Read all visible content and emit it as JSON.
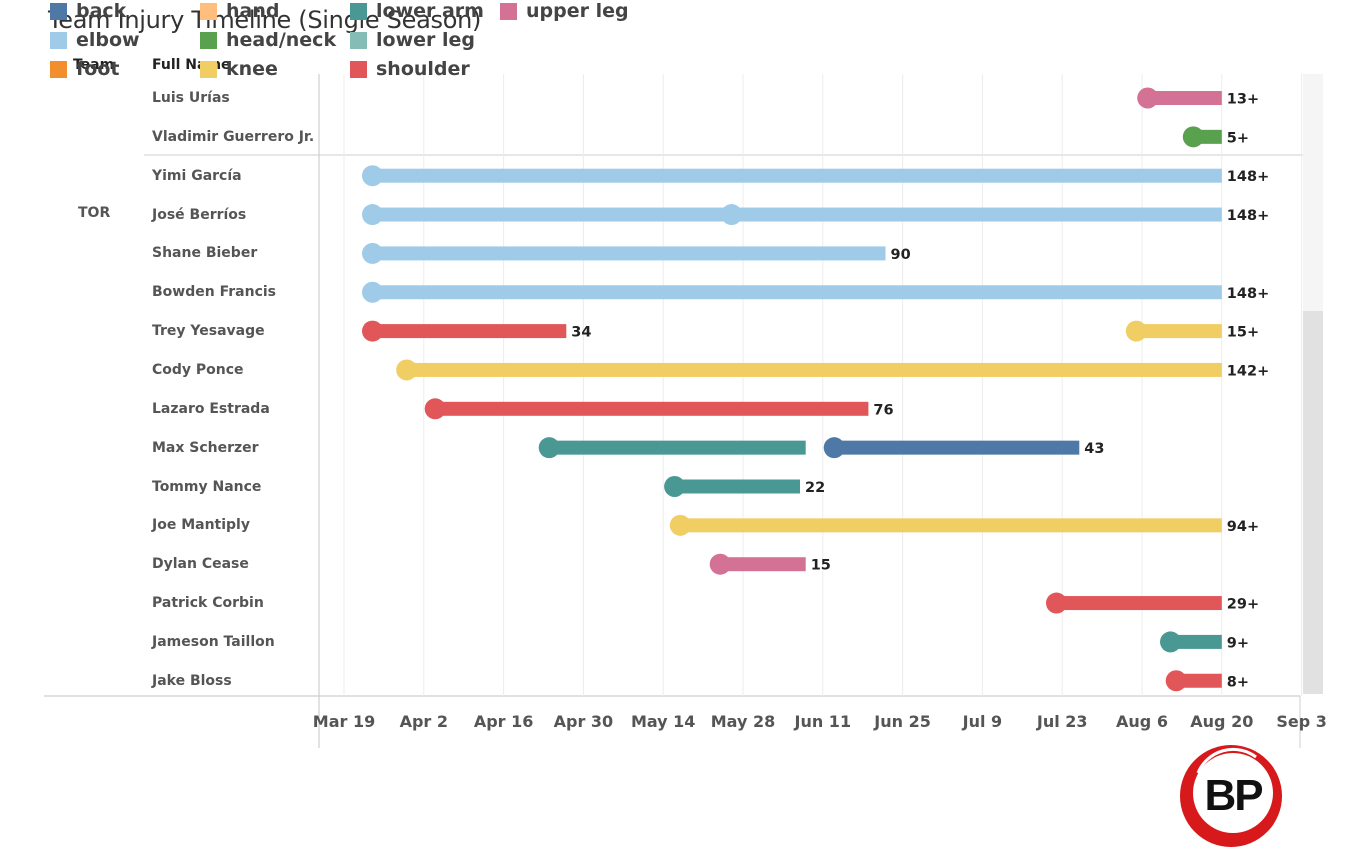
{
  "title": "Team Injury Timeline (Single Season)",
  "headers": {
    "team": "Team",
    "full_name": "Full Name"
  },
  "chart_data": {
    "type": "timeline",
    "x_axis": {
      "type": "date",
      "year": null,
      "range": [
        "Mar 18",
        "Sep 6"
      ],
      "tick_labels": [
        "Mar 19",
        "Apr 2",
        "Apr 16",
        "Apr 30",
        "May 14",
        "May 28",
        "Jun 11",
        "Jun 25",
        "Jul 9",
        "Jul 23",
        "Aug 6",
        "Aug 20",
        "Sep 3"
      ],
      "grid": true
    },
    "groups": [
      {
        "team": "",
        "players": [
          "Luis Urías",
          "Vladimir Guerrero Jr."
        ]
      },
      {
        "team": "TOR",
        "players": [
          "Yimi García",
          "José Berríos",
          "Shane Bieber",
          "Bowden Francis",
          "Trey Yesavage",
          "Cody Ponce",
          "Lazaro Estrada",
          "Max Scherzer",
          "Tommy Nance",
          "Joe Mantiply",
          "Dylan Cease",
          "Patrick Corbin",
          "Jameson Taillon",
          "Jake Bloss"
        ]
      }
    ],
    "rows": [
      {
        "name": "Luis Urías",
        "injuries": [
          {
            "part": "upper leg",
            "start": "Aug 7",
            "end": "Aug 20",
            "label": "13+"
          }
        ]
      },
      {
        "name": "Vladimir Guerrero Jr.",
        "injuries": [
          {
            "part": "head/neck",
            "start": "Aug 15",
            "end": "Aug 20",
            "label": "5+"
          }
        ]
      },
      {
        "name": "Yimi García",
        "injuries": [
          {
            "part": "elbow",
            "start": "Mar 24",
            "end": "Aug 20",
            "label": "148+"
          }
        ]
      },
      {
        "name": "José Berríos",
        "injuries": [
          {
            "part": "elbow",
            "start": "Mar 24",
            "end": "Aug 20",
            "label": "148+"
          },
          {
            "part": "elbow",
            "start": "May 26",
            "end": "May 26",
            "label": ""
          }
        ]
      },
      {
        "name": "Shane Bieber",
        "injuries": [
          {
            "part": "elbow",
            "start": "Mar 24",
            "end": "Jun 22",
            "label": "90"
          }
        ]
      },
      {
        "name": "Bowden Francis",
        "injuries": [
          {
            "part": "elbow",
            "start": "Mar 24",
            "end": "Aug 20",
            "label": "148+"
          }
        ]
      },
      {
        "name": "Trey Yesavage",
        "injuries": [
          {
            "part": "shoulder",
            "start": "Mar 24",
            "end": "Apr 27",
            "label": "34"
          },
          {
            "part": "knee",
            "start": "Aug 5",
            "end": "Aug 20",
            "label": "15+"
          }
        ]
      },
      {
        "name": "Cody Ponce",
        "injuries": [
          {
            "part": "knee",
            "start": "Mar 30",
            "end": "Aug 20",
            "label": "142+"
          }
        ]
      },
      {
        "name": "Lazaro Estrada",
        "injuries": [
          {
            "part": "shoulder",
            "start": "Apr 4",
            "end": "Jun 19",
            "label": "76"
          }
        ]
      },
      {
        "name": "Max Scherzer",
        "injuries": [
          {
            "part": "lower arm",
            "start": "Apr 24",
            "end": "Jun 8",
            "label": ""
          },
          {
            "part": "back",
            "start": "Jun 13",
            "end": "Jul 26",
            "label": "43"
          }
        ]
      },
      {
        "name": "Tommy Nance",
        "injuries": [
          {
            "part": "lower arm",
            "start": "May 16",
            "end": "Jun 7",
            "label": "22"
          }
        ]
      },
      {
        "name": "Joe Mantiply",
        "injuries": [
          {
            "part": "knee",
            "start": "May 17",
            "end": "Aug 20",
            "label": "94+"
          }
        ]
      },
      {
        "name": "Dylan Cease",
        "injuries": [
          {
            "part": "upper leg",
            "start": "May 24",
            "end": "Jun 8",
            "label": "15"
          }
        ]
      },
      {
        "name": "Patrick Corbin",
        "injuries": [
          {
            "part": "shoulder",
            "start": "Jul 22",
            "end": "Aug 20",
            "label": "29+"
          }
        ]
      },
      {
        "name": "Jameson Taillon",
        "injuries": [
          {
            "part": "lower arm",
            "start": "Aug 11",
            "end": "Aug 20",
            "label": "9+"
          }
        ]
      },
      {
        "name": "Jake Bloss",
        "injuries": [
          {
            "part": "shoulder",
            "start": "Aug 12",
            "end": "Aug 20",
            "label": "8+"
          }
        ]
      }
    ],
    "legend": [
      {
        "label": "back",
        "color": "#4e79a7"
      },
      {
        "label": "elbow",
        "color": "#a0cbe8"
      },
      {
        "label": "foot",
        "color": "#f28e2b"
      },
      {
        "label": "hand",
        "color": "#ffbe7d"
      },
      {
        "label": "head/neck",
        "color": "#59a14f"
      },
      {
        "label": "knee",
        "color": "#f1ce63"
      },
      {
        "label": "lower arm",
        "color": "#499894"
      },
      {
        "label": "lower leg",
        "color": "#86bcb6"
      },
      {
        "label": "shoulder",
        "color": "#e15759"
      },
      {
        "label": "upper leg",
        "color": "#d37295"
      }
    ]
  },
  "logo": {
    "text": "BP",
    "color": "#d7191c"
  }
}
